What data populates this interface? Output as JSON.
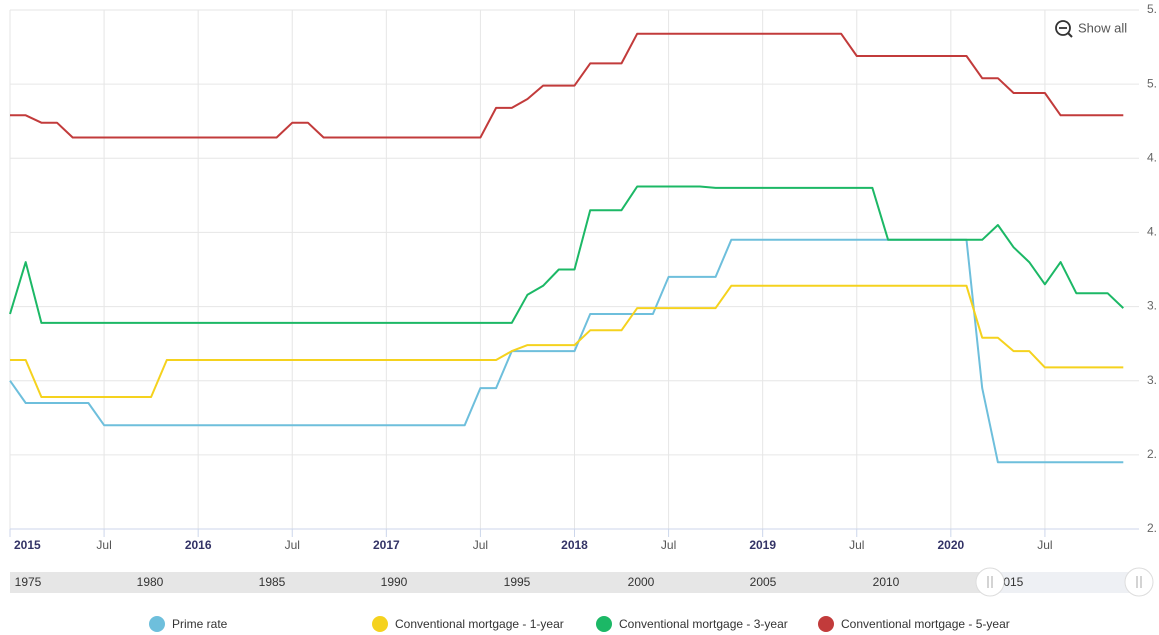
{
  "chart_data": {
    "type": "line",
    "x": [
      "2015-01",
      "2015-02",
      "2015-03",
      "2015-04",
      "2015-05",
      "2015-06",
      "2015-07",
      "2015-08",
      "2015-09",
      "2015-10",
      "2015-11",
      "2015-12",
      "2016-01",
      "2016-02",
      "2016-03",
      "2016-04",
      "2016-05",
      "2016-06",
      "2016-07",
      "2016-08",
      "2016-09",
      "2016-10",
      "2016-11",
      "2016-12",
      "2017-01",
      "2017-02",
      "2017-03",
      "2017-04",
      "2017-05",
      "2017-06",
      "2017-07",
      "2017-08",
      "2017-09",
      "2017-10",
      "2017-11",
      "2017-12",
      "2018-01",
      "2018-02",
      "2018-03",
      "2018-04",
      "2018-05",
      "2018-06",
      "2018-07",
      "2018-08",
      "2018-09",
      "2018-10",
      "2018-11",
      "2018-12",
      "2019-01",
      "2019-02",
      "2019-03",
      "2019-04",
      "2019-05",
      "2019-06",
      "2019-07",
      "2019-08",
      "2019-09",
      "2019-10",
      "2019-11",
      "2019-12",
      "2020-01",
      "2020-02",
      "2020-03",
      "2020-04",
      "2020-05",
      "2020-06",
      "2020-07",
      "2020-08",
      "2020-09",
      "2020-10",
      "2020-11",
      "2020-12"
    ],
    "series": [
      {
        "name": "Prime rate",
        "color": "#6ebfdc",
        "values": [
          3.0,
          2.85,
          2.85,
          2.85,
          2.85,
          2.85,
          2.7,
          2.7,
          2.7,
          2.7,
          2.7,
          2.7,
          2.7,
          2.7,
          2.7,
          2.7,
          2.7,
          2.7,
          2.7,
          2.7,
          2.7,
          2.7,
          2.7,
          2.7,
          2.7,
          2.7,
          2.7,
          2.7,
          2.7,
          2.7,
          2.95,
          2.95,
          3.2,
          3.2,
          3.2,
          3.2,
          3.2,
          3.45,
          3.45,
          3.45,
          3.45,
          3.45,
          3.7,
          3.7,
          3.7,
          3.7,
          3.95,
          3.95,
          3.95,
          3.95,
          3.95,
          3.95,
          3.95,
          3.95,
          3.95,
          3.95,
          3.95,
          3.95,
          3.95,
          3.95,
          3.95,
          3.95,
          2.95,
          2.45,
          2.45,
          2.45,
          2.45,
          2.45,
          2.45,
          2.45,
          2.45,
          2.45
        ]
      },
      {
        "name": "Conventional mortgage - 1-year",
        "color": "#f5d21e",
        "values": [
          3.14,
          3.14,
          2.89,
          2.89,
          2.89,
          2.89,
          2.89,
          2.89,
          2.89,
          2.89,
          3.14,
          3.14,
          3.14,
          3.14,
          3.14,
          3.14,
          3.14,
          3.14,
          3.14,
          3.14,
          3.14,
          3.14,
          3.14,
          3.14,
          3.14,
          3.14,
          3.14,
          3.14,
          3.14,
          3.14,
          3.14,
          3.14,
          3.2,
          3.24,
          3.24,
          3.24,
          3.24,
          3.34,
          3.34,
          3.34,
          3.49,
          3.49,
          3.49,
          3.49,
          3.49,
          3.49,
          3.64,
          3.64,
          3.64,
          3.64,
          3.64,
          3.64,
          3.64,
          3.64,
          3.64,
          3.64,
          3.64,
          3.64,
          3.64,
          3.64,
          3.64,
          3.64,
          3.29,
          3.29,
          3.2,
          3.2,
          3.09,
          3.09,
          3.09,
          3.09,
          3.09,
          3.09
        ]
      },
      {
        "name": "Conventional mortgage - 3-year",
        "color": "#1cb866",
        "values": [
          3.45,
          3.8,
          3.39,
          3.39,
          3.39,
          3.39,
          3.39,
          3.39,
          3.39,
          3.39,
          3.39,
          3.39,
          3.39,
          3.39,
          3.39,
          3.39,
          3.39,
          3.39,
          3.39,
          3.39,
          3.39,
          3.39,
          3.39,
          3.39,
          3.39,
          3.39,
          3.39,
          3.39,
          3.39,
          3.39,
          3.39,
          3.39,
          3.39,
          3.58,
          3.64,
          3.75,
          3.75,
          4.15,
          4.15,
          4.15,
          4.31,
          4.31,
          4.31,
          4.31,
          4.31,
          4.3,
          4.3,
          4.3,
          4.3,
          4.3,
          4.3,
          4.3,
          4.3,
          4.3,
          4.3,
          4.3,
          3.95,
          3.95,
          3.95,
          3.95,
          3.95,
          3.95,
          3.95,
          4.05,
          3.9,
          3.8,
          3.65,
          3.8,
          3.59,
          3.59,
          3.59,
          3.49
        ]
      },
      {
        "name": "Conventional mortgage - 5-year",
        "color": "#c23b3b",
        "values": [
          4.79,
          4.79,
          4.74,
          4.74,
          4.64,
          4.64,
          4.64,
          4.64,
          4.64,
          4.64,
          4.64,
          4.64,
          4.64,
          4.64,
          4.64,
          4.64,
          4.64,
          4.64,
          4.74,
          4.74,
          4.64,
          4.64,
          4.64,
          4.64,
          4.64,
          4.64,
          4.64,
          4.64,
          4.64,
          4.64,
          4.64,
          4.84,
          4.84,
          4.9,
          4.99,
          4.99,
          4.99,
          5.14,
          5.14,
          5.14,
          5.34,
          5.34,
          5.34,
          5.34,
          5.34,
          5.34,
          5.34,
          5.34,
          5.34,
          5.34,
          5.34,
          5.34,
          5.34,
          5.34,
          5.19,
          5.19,
          5.19,
          5.19,
          5.19,
          5.19,
          5.19,
          5.19,
          5.04,
          5.04,
          4.94,
          4.94,
          4.94,
          4.79,
          4.79,
          4.79,
          4.79,
          4.79
        ]
      }
    ],
    "xlim": [
      "2015-01",
      "2021-01"
    ],
    "xticks": [
      {
        "value": "2015-01",
        "label": "2015"
      },
      {
        "value": "2015-07",
        "label": "Jul"
      },
      {
        "value": "2016-01",
        "label": "2016"
      },
      {
        "value": "2016-07",
        "label": "Jul"
      },
      {
        "value": "2017-01",
        "label": "2017"
      },
      {
        "value": "2017-07",
        "label": "Jul"
      },
      {
        "value": "2018-01",
        "label": "2018"
      },
      {
        "value": "2018-07",
        "label": "Jul"
      },
      {
        "value": "2019-01",
        "label": "2019"
      },
      {
        "value": "2019-07",
        "label": "Jul"
      },
      {
        "value": "2020-01",
        "label": "2020"
      },
      {
        "value": "2020-07",
        "label": "Jul"
      }
    ],
    "ylim": [
      2.0,
      5.5
    ],
    "yticks": [
      {
        "value": 2.0,
        "label": "2."
      },
      {
        "value": 2.5,
        "label": "2."
      },
      {
        "value": 3.0,
        "label": "3."
      },
      {
        "value": 3.5,
        "label": "3."
      },
      {
        "value": 4.0,
        "label": "4."
      },
      {
        "value": 4.5,
        "label": "4."
      },
      {
        "value": 5.0,
        "label": "5."
      },
      {
        "value": 5.5,
        "label": "5."
      }
    ],
    "grid": true,
    "legend": "bottom"
  },
  "controls": {
    "reset_zoom": "Show all"
  },
  "navigator": {
    "labels": [
      "1975",
      "1980",
      "1985",
      "1990",
      "1995",
      "2000",
      "2005",
      "2010",
      "2015",
      "2"
    ]
  }
}
